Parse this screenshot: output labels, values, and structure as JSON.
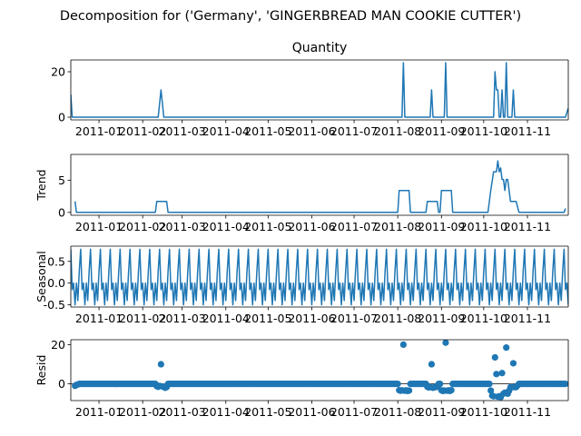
{
  "figure": {
    "suptitle": "Decomposition for ('Germany', 'GINGERBREAD MAN COOKIE CUTTER')"
  },
  "colors": {
    "line": "#1f77b4",
    "axis": "#000000",
    "bg": "#ffffff"
  },
  "chart_data": [
    {
      "type": "line",
      "title": "Quantity",
      "ylabel": "",
      "x_range": [
        "2010-12-12",
        "2011-11-30"
      ],
      "xticks": [
        "2011-01",
        "2011-02",
        "2011-03",
        "2011-04",
        "2011-05",
        "2011-06",
        "2011-07",
        "2011-08",
        "2011-09",
        "2011-10",
        "2011-11"
      ],
      "ylim": [
        -1.2,
        25.2
      ],
      "yticks": [
        0,
        20
      ],
      "baseline": 0,
      "points": [
        [
          "2010-12-12",
          10
        ],
        [
          "2010-12-13",
          0
        ],
        [
          "2011-02-12",
          0
        ],
        [
          "2011-02-14",
          12
        ],
        [
          "2011-02-16",
          0
        ],
        [
          "2011-08-04",
          0
        ],
        [
          "2011-08-05",
          24
        ],
        [
          "2011-08-06",
          0
        ],
        [
          "2011-08-24",
          0
        ],
        [
          "2011-08-25",
          12
        ],
        [
          "2011-08-26",
          0
        ],
        [
          "2011-09-03",
          0
        ],
        [
          "2011-09-04",
          24
        ],
        [
          "2011-09-05",
          0
        ],
        [
          "2011-10-08",
          0
        ],
        [
          "2011-10-09",
          20
        ],
        [
          "2011-10-10",
          12
        ],
        [
          "2011-10-11",
          12
        ],
        [
          "2011-10-12",
          0
        ],
        [
          "2011-10-13",
          0
        ],
        [
          "2011-10-14",
          12
        ],
        [
          "2011-10-15",
          0
        ],
        [
          "2011-10-16",
          0
        ],
        [
          "2011-10-17",
          24
        ],
        [
          "2011-10-18",
          0
        ],
        [
          "2011-10-21",
          0
        ],
        [
          "2011-10-22",
          12
        ],
        [
          "2011-10-23",
          0
        ],
        [
          "2011-11-28",
          0
        ],
        [
          "2011-11-30",
          4
        ]
      ]
    },
    {
      "type": "line",
      "title": "",
      "ylabel": "Trend",
      "x_range": [
        "2010-12-12",
        "2011-11-30"
      ],
      "xticks": [
        "2011-01",
        "2011-02",
        "2011-03",
        "2011-04",
        "2011-05",
        "2011-06",
        "2011-07",
        "2011-08",
        "2011-09",
        "2011-10",
        "2011-11"
      ],
      "ylim": [
        -0.45,
        9.0
      ],
      "yticks": [
        0,
        5
      ],
      "points": [
        [
          "2010-12-15",
          1.7
        ],
        [
          "2010-12-16",
          0
        ],
        [
          "2011-02-10",
          0
        ],
        [
          "2011-02-11",
          1.7
        ],
        [
          "2011-02-18",
          1.7
        ],
        [
          "2011-02-19",
          0
        ],
        [
          "2011-08-01",
          0
        ],
        [
          "2011-08-02",
          3.4
        ],
        [
          "2011-08-09",
          3.4
        ],
        [
          "2011-08-10",
          0
        ],
        [
          "2011-08-21",
          0
        ],
        [
          "2011-08-22",
          1.7
        ],
        [
          "2011-08-29",
          1.7
        ],
        [
          "2011-08-30",
          0
        ],
        [
          "2011-08-31",
          0
        ],
        [
          "2011-09-01",
          3.4
        ],
        [
          "2011-09-08",
          3.4
        ],
        [
          "2011-09-09",
          0
        ],
        [
          "2011-10-04",
          0
        ],
        [
          "2011-10-06",
          3.4
        ],
        [
          "2011-10-08",
          6.3
        ],
        [
          "2011-10-10",
          6.3
        ],
        [
          "2011-10-11",
          8.0
        ],
        [
          "2011-10-12",
          6.3
        ],
        [
          "2011-10-13",
          6.9
        ],
        [
          "2011-10-14",
          5.1
        ],
        [
          "2011-10-15",
          5.1
        ],
        [
          "2011-10-16",
          3.4
        ],
        [
          "2011-10-17",
          5.1
        ],
        [
          "2011-10-18",
          5.1
        ],
        [
          "2011-10-20",
          1.7
        ],
        [
          "2011-10-24",
          1.7
        ],
        [
          "2011-10-26",
          0
        ],
        [
          "2011-11-27",
          0
        ],
        [
          "2011-11-28",
          0.6
        ]
      ]
    },
    {
      "type": "line",
      "title": "",
      "ylabel": "Seasonal",
      "x_range": [
        "2010-12-12",
        "2011-11-30"
      ],
      "xticks": [
        "2011-01",
        "2011-02",
        "2011-03",
        "2011-04",
        "2011-05",
        "2011-06",
        "2011-07",
        "2011-08",
        "2011-09",
        "2011-10",
        "2011-11"
      ],
      "ylim": [
        -0.55,
        0.85
      ],
      "yticks": [
        -0.5,
        0.0,
        0.5
      ],
      "period": 7,
      "start_date": "2010-12-12",
      "end_date": "2011-11-30",
      "pattern": [
        0.78,
        -0.15,
        0.0,
        -0.5,
        0.0,
        -0.4,
        0.27
      ]
    },
    {
      "type": "scatter",
      "title": "",
      "ylabel": "Resid",
      "x_range": [
        "2010-12-12",
        "2011-11-30"
      ],
      "xticks": [
        "2011-01",
        "2011-02",
        "2011-03",
        "2011-04",
        "2011-05",
        "2011-06",
        "2011-07",
        "2011-08",
        "2011-09",
        "2011-10",
        "2011-11"
      ],
      "ylim": [
        -8.5,
        22.5
      ],
      "yticks": [
        0,
        20
      ],
      "baseline": 0,
      "start_date": "2010-12-15",
      "end_date": "2011-11-28",
      "default": 0,
      "points": [
        [
          "2010-12-15",
          -1
        ],
        [
          "2010-12-16",
          -0.5
        ],
        [
          "2010-12-17",
          -0.3
        ],
        [
          "2011-02-11",
          -1.2
        ],
        [
          "2011-02-12",
          -1.5
        ],
        [
          "2011-02-13",
          -1.0
        ],
        [
          "2011-02-14",
          10
        ],
        [
          "2011-02-15",
          -1.3
        ],
        [
          "2011-02-16",
          -1.6
        ],
        [
          "2011-02-17",
          -2.0
        ],
        [
          "2011-02-18",
          -1.6
        ],
        [
          "2011-08-02",
          -3.2
        ],
        [
          "2011-08-03",
          -3.5
        ],
        [
          "2011-08-04",
          -3.3
        ],
        [
          "2011-08-05",
          20
        ],
        [
          "2011-08-06",
          -3.5
        ],
        [
          "2011-08-07",
          -3.3
        ],
        [
          "2011-08-08",
          -3.6
        ],
        [
          "2011-08-09",
          -3.4
        ],
        [
          "2011-08-22",
          -1.5
        ],
        [
          "2011-08-23",
          -1.8
        ],
        [
          "2011-08-24",
          -1.6
        ],
        [
          "2011-08-25",
          10
        ],
        [
          "2011-08-26",
          -2.0
        ],
        [
          "2011-08-27",
          -1.7
        ],
        [
          "2011-08-28",
          -1.6
        ],
        [
          "2011-08-29",
          -1.5
        ],
        [
          "2011-09-01",
          -3.3
        ],
        [
          "2011-09-02",
          -3.6
        ],
        [
          "2011-09-03",
          -3.4
        ],
        [
          "2011-09-04",
          21
        ],
        [
          "2011-09-05",
          -3.5
        ],
        [
          "2011-09-06",
          -3.3
        ],
        [
          "2011-09-07",
          -3.6
        ],
        [
          "2011-09-08",
          -3.2
        ],
        [
          "2011-10-06",
          -3.4
        ],
        [
          "2011-10-07",
          -6.0
        ],
        [
          "2011-10-08",
          -6.3
        ],
        [
          "2011-10-09",
          13.5
        ],
        [
          "2011-10-10",
          5.0
        ],
        [
          "2011-10-11",
          -6.5
        ],
        [
          "2011-10-12",
          -6.3
        ],
        [
          "2011-10-13",
          -6.8
        ],
        [
          "2011-10-14",
          5.5
        ],
        [
          "2011-10-15",
          -5.0
        ],
        [
          "2011-10-16",
          -4.5
        ],
        [
          "2011-10-17",
          18.5
        ],
        [
          "2011-10-18",
          -5.0
        ],
        [
          "2011-10-19",
          -3.5
        ],
        [
          "2011-10-20",
          -1.7
        ],
        [
          "2011-10-21",
          -1.6
        ],
        [
          "2011-10-22",
          10.5
        ],
        [
          "2011-10-23",
          -1.7
        ],
        [
          "2011-10-24",
          -1.6
        ],
        [
          "2011-10-25",
          -0.8
        ]
      ]
    }
  ]
}
